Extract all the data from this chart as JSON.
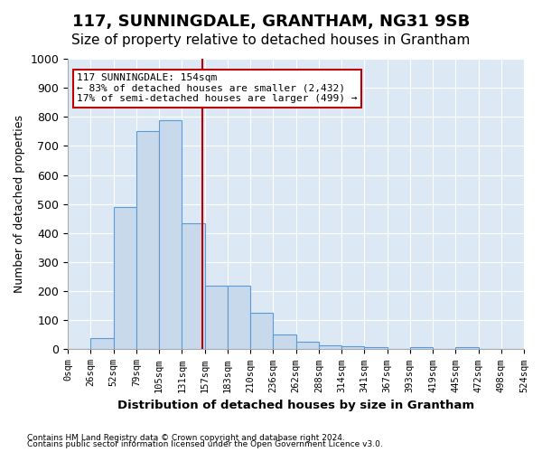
{
  "title1": "117, SUNNINGDALE, GRANTHAM, NG31 9SB",
  "title2": "Size of property relative to detached houses in Grantham",
  "xlabel": "Distribution of detached houses by size in Grantham",
  "ylabel": "Number of detached properties",
  "bin_labels": [
    "0sqm",
    "26sqm",
    "52sqm",
    "79sqm",
    "105sqm",
    "131sqm",
    "157sqm",
    "183sqm",
    "210sqm",
    "236sqm",
    "262sqm",
    "288sqm",
    "314sqm",
    "341sqm",
    "367sqm",
    "393sqm",
    "419sqm",
    "445sqm",
    "472sqm",
    "498sqm",
    "524sqm"
  ],
  "bar_heights": [
    0,
    40,
    490,
    750,
    790,
    435,
    220,
    218,
    125,
    50,
    25,
    15,
    10,
    8,
    0,
    8,
    0,
    8,
    0,
    0
  ],
  "bar_color": "#c9d9ec",
  "bar_edge_color": "#5b9bd5",
  "vline_x": 5.885,
  "vline_color": "#c00000",
  "annotation_text": "117 SUNNINGDALE: 154sqm\n← 83% of detached houses are smaller (2,432)\n17% of semi-detached houses are larger (499) →",
  "annotation_box_color": "#c00000",
  "ylim": [
    0,
    1000
  ],
  "yticks": [
    0,
    100,
    200,
    300,
    400,
    500,
    600,
    700,
    800,
    900,
    1000
  ],
  "footer1": "Contains HM Land Registry data © Crown copyright and database right 2024.",
  "footer2": "Contains public sector information licensed under the Open Government Licence v3.0.",
  "bg_color": "#dce9f5",
  "grid_color": "#ffffff",
  "title1_fontsize": 13,
  "title2_fontsize": 11
}
